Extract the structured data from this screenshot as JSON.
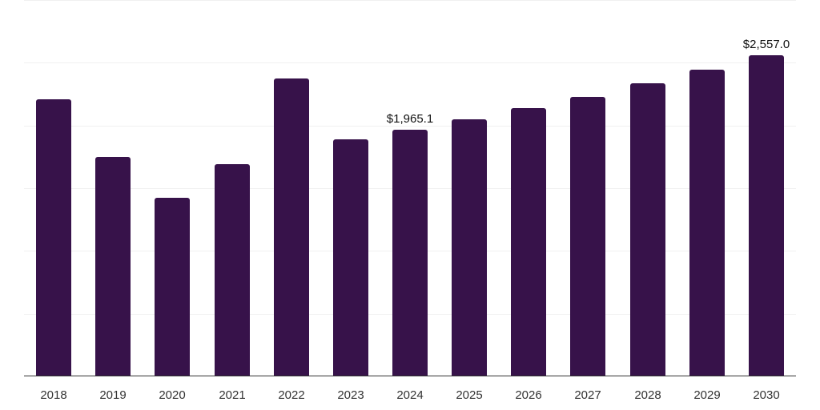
{
  "chart_data": {
    "type": "bar",
    "title": "",
    "xlabel": "",
    "ylabel": "",
    "categories": [
      "2018",
      "2019",
      "2020",
      "2021",
      "2022",
      "2023",
      "2024",
      "2025",
      "2026",
      "2027",
      "2028",
      "2029",
      "2030"
    ],
    "values": [
      2210,
      1750,
      1425,
      1693,
      2377,
      1891,
      1965.1,
      2048,
      2136,
      2229,
      2333,
      2442,
      2557.0
    ],
    "data_labels": [
      {
        "category": "2024",
        "text": "$1,965.1"
      },
      {
        "category": "2030",
        "text": "$2,557.0"
      }
    ],
    "ylim": [
      0,
      3000
    ],
    "gridlines": [
      500,
      1000,
      1500,
      2000,
      2500,
      3000
    ],
    "grid": true,
    "legend": null,
    "bar_color": "#37124a",
    "axis_color": "#333333",
    "grid_color": "#f0f0f0"
  }
}
